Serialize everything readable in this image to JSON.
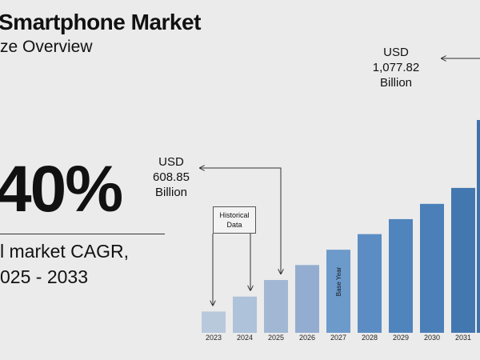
{
  "header": {
    "title": "Smartphone Market",
    "subtitle": "ze Overview"
  },
  "cagr": {
    "value": "40%",
    "label_line1": "l market CAGR,",
    "label_line2": "025 - 2033"
  },
  "callouts": {
    "y2025": {
      "line1": "USD",
      "line2": "608.85",
      "line3": "Billion"
    },
    "y2032": {
      "line1": "USD",
      "line2": "1,077.82",
      "line3": "Billion"
    }
  },
  "historical_box": {
    "line1": "Historical",
    "line2": "Data"
  },
  "chart_data": {
    "type": "bar",
    "title": "",
    "xlabel": "",
    "ylabel": "",
    "categories": [
      "2023",
      "2024",
      "2025",
      "2026",
      "2027",
      "2028",
      "2029",
      "2030",
      "2031"
    ],
    "values": [
      514,
      559,
      608.85,
      654,
      700,
      747,
      792,
      838,
      886
    ],
    "value_unit": "USD Billion",
    "ylim": [
      450,
      1100
    ],
    "base_year_category": "2027",
    "base_year_label": "Base Year",
    "colors": [
      "#b9c9dc",
      "#aec2d9",
      "#a1b7d3",
      "#93add0",
      "#6c9acb",
      "#5b8dc4",
      "#4f84bd",
      "#4a7fb8",
      "#4377b0"
    ],
    "grid": false,
    "legend": "none"
  }
}
